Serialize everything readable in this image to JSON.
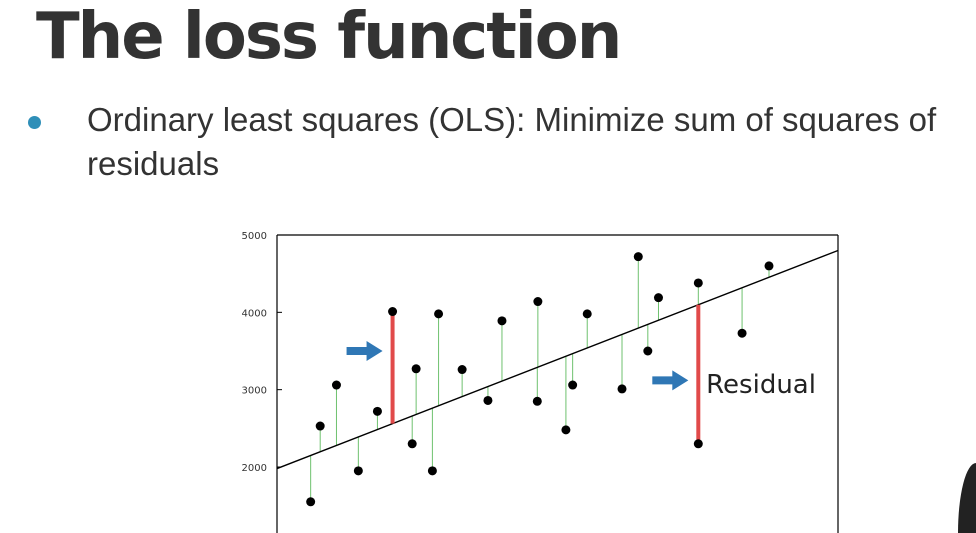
{
  "slide": {
    "title": "The loss function",
    "bullet": "Ordinary least squares (OLS): Minimize sum of squares of residuals"
  },
  "colors": {
    "title_text": "#333333",
    "bullet_dot": "#2f8fb8",
    "arrow": "#2f77b5",
    "residual_highlight": "#e14a4a",
    "residual_line": "#6ec16e",
    "regression_line": "#000000",
    "points": "#000000"
  },
  "chart_data": {
    "type": "scatter",
    "title": "",
    "xlabel": "",
    "ylabel": "",
    "xlim": [
      0,
      1
    ],
    "ylim": [
      1250,
      5000
    ],
    "yticks": [
      2000,
      3000,
      4000,
      5000
    ],
    "ytick_labels": [
      "2000",
      "3000",
      "4000",
      "5000"
    ],
    "x_ticks_visible": false,
    "grid": false,
    "regression_line": {
      "intercept": 1980,
      "slope": 2820
    },
    "points": [
      {
        "x": 0.06,
        "y": 1550
      },
      {
        "x": 0.077,
        "y": 2530
      },
      {
        "x": 0.106,
        "y": 3060
      },
      {
        "x": 0.145,
        "y": 1950
      },
      {
        "x": 0.179,
        "y": 2720
      },
      {
        "x": 0.206,
        "y": 4010,
        "highlight": true
      },
      {
        "x": 0.248,
        "y": 3270
      },
      {
        "x": 0.241,
        "y": 2300
      },
      {
        "x": 0.277,
        "y": 1950
      },
      {
        "x": 0.288,
        "y": 3980
      },
      {
        "x": 0.33,
        "y": 3260
      },
      {
        "x": 0.376,
        "y": 2860
      },
      {
        "x": 0.401,
        "y": 3890
      },
      {
        "x": 0.465,
        "y": 4140
      },
      {
        "x": 0.464,
        "y": 2850
      },
      {
        "x": 0.515,
        "y": 2480
      },
      {
        "x": 0.527,
        "y": 3060
      },
      {
        "x": 0.553,
        "y": 3980
      },
      {
        "x": 0.615,
        "y": 3010
      },
      {
        "x": 0.644,
        "y": 4720
      },
      {
        "x": 0.661,
        "y": 3500
      },
      {
        "x": 0.68,
        "y": 4190
      },
      {
        "x": 0.751,
        "y": 4380
      },
      {
        "x": 0.751,
        "y": 2300,
        "highlight": true
      },
      {
        "x": 0.829,
        "y": 3730
      },
      {
        "x": 0.877,
        "y": 4600
      }
    ],
    "annotations": [
      {
        "text": "Residual",
        "x": 0.765,
        "y": 2960
      }
    ]
  }
}
